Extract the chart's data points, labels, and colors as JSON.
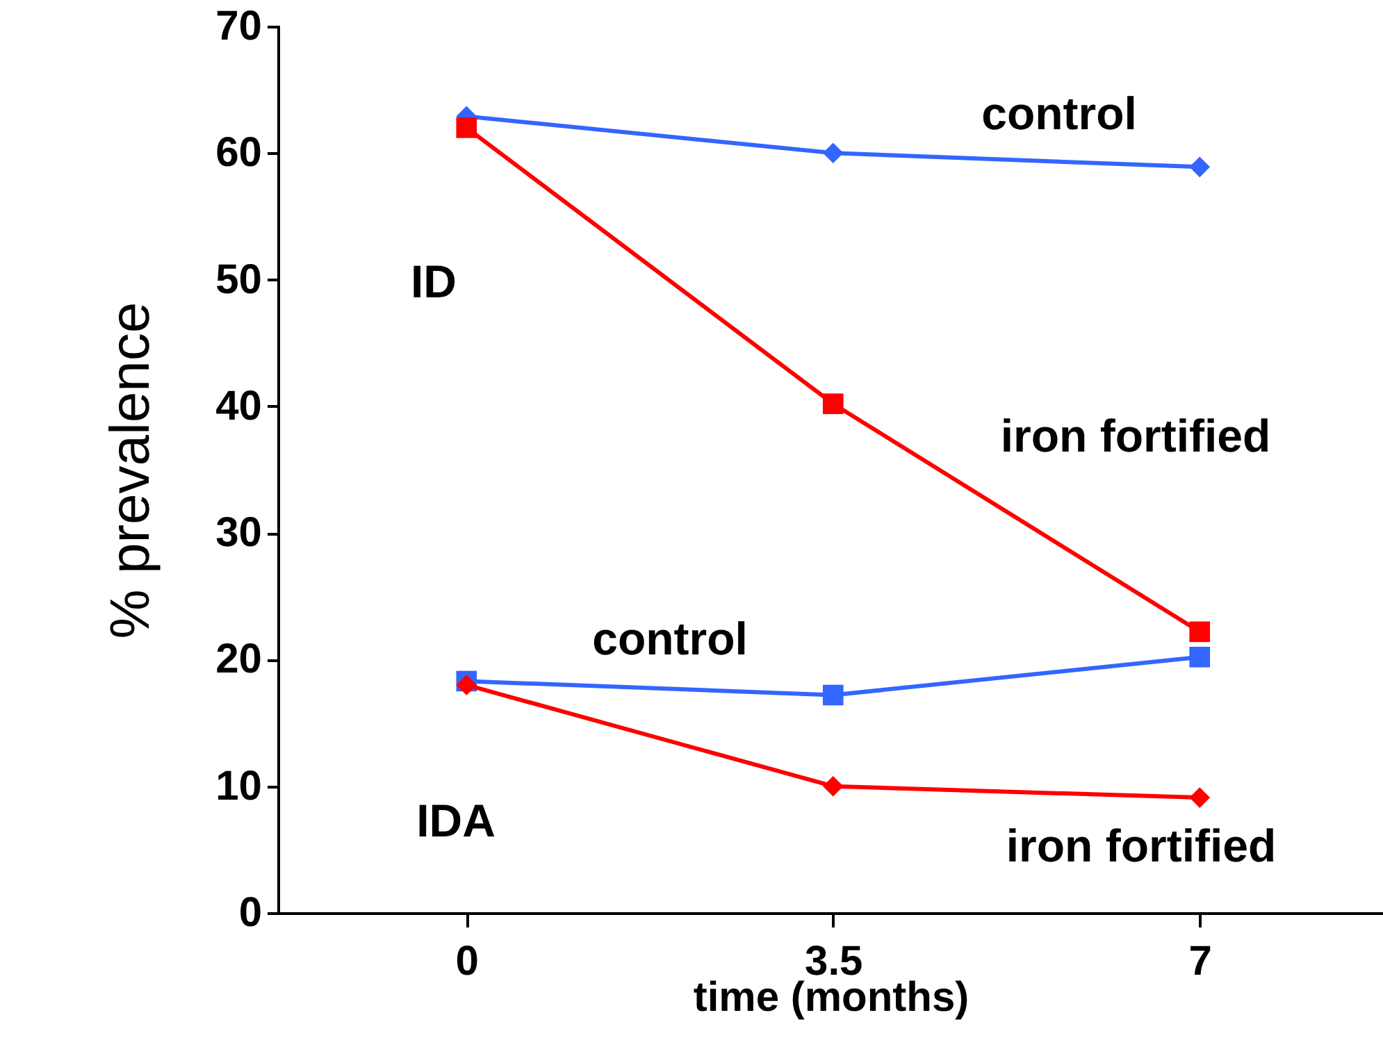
{
  "chart_data": {
    "type": "line",
    "xlabel": "time (months)",
    "ylabel": "% prevalence",
    "x": [
      0,
      3.5,
      7
    ],
    "xlim": [
      -1.8,
      8.75
    ],
    "xticks": [
      0,
      3.5,
      7
    ],
    "ylim": [
      0,
      70
    ],
    "yticks": [
      0,
      10,
      20,
      30,
      40,
      50,
      60,
      70
    ],
    "grid": false,
    "line_style": "solid",
    "annotations": [
      "ID",
      "IDA"
    ],
    "series": [
      {
        "name": "control",
        "color": "#3366ff",
        "marker": "diamond",
        "values": [
          62.9,
          60.0,
          58.9
        ]
      },
      {
        "name": "iron fortified",
        "color": "#ff0000",
        "marker": "square",
        "values": [
          62.0,
          40.2,
          22.2
        ]
      },
      {
        "name": "control",
        "color": "#3366ff",
        "marker": "square",
        "values": [
          18.3,
          17.2,
          20.2
        ]
      },
      {
        "name": "iron fortified",
        "color": "#ff0000",
        "marker": "diamond",
        "values": [
          18.0,
          10.0,
          9.1
        ]
      }
    ]
  }
}
